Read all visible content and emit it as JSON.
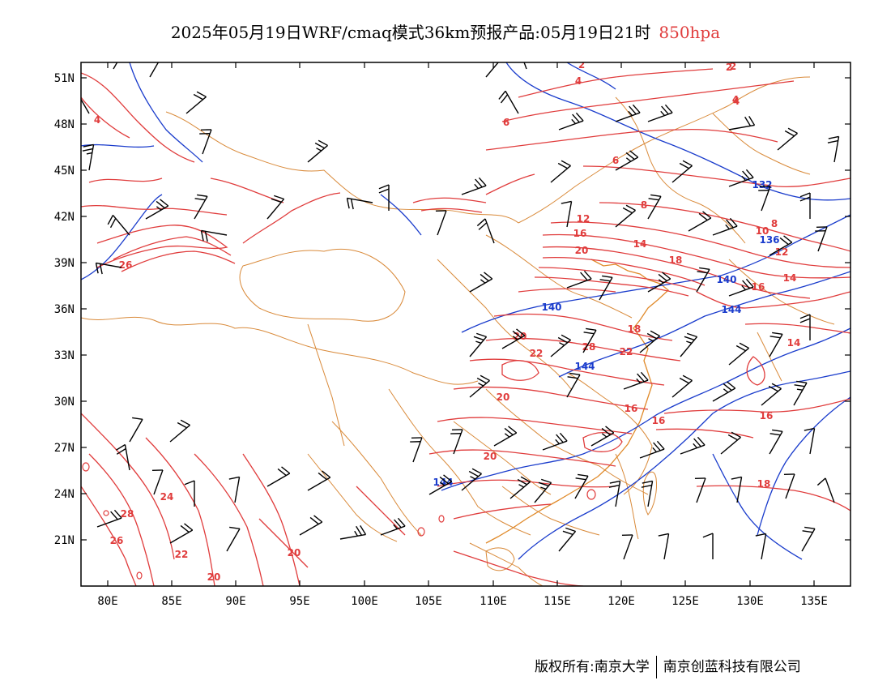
{
  "title": {
    "text": "2025年05月19日WRF/cmaq模式36km预报产品:05月19日21时",
    "level": "850hpa"
  },
  "axes": {
    "lat_labels": [
      "51N",
      "48N",
      "45N",
      "42N",
      "39N",
      "36N",
      "33N",
      "30N",
      "27N",
      "24N",
      "21N"
    ],
    "lon_labels": [
      "80E",
      "85E",
      "90E",
      "95E",
      "100E",
      "105E",
      "110E",
      "115E",
      "120E",
      "125E",
      "130E",
      "135E"
    ]
  },
  "colors": {
    "temperature_contour": "#e03c3c",
    "geopotential_contour": "#1a3ccc",
    "border": "#d98a3a",
    "wind_barb": "#000000"
  },
  "contour_labels": {
    "temperature": [
      "2",
      "4",
      "4",
      "2",
      "4",
      "6",
      "6",
      "8",
      "12",
      "16",
      "20",
      "14",
      "18",
      "10",
      "8",
      "12",
      "16",
      "14",
      "20",
      "22",
      "28",
      "20",
      "24",
      "22",
      "20",
      "28",
      "26",
      "20",
      "20",
      "16",
      "16",
      "16",
      "18",
      "14",
      "26",
      "18",
      "22",
      "2",
      "4"
    ],
    "geopotential": [
      "140",
      "144",
      "144",
      "140",
      "136",
      "144",
      "132"
    ]
  },
  "footer": {
    "copyright": "版权所有:南京大学",
    "company": "南京创蓝科技有限公司"
  }
}
